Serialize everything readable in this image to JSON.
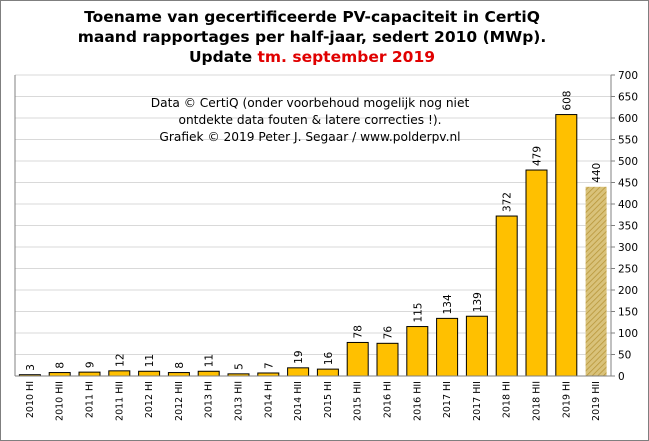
{
  "title": {
    "line1": "Toename van gecertificeerde PV-capaciteit  in CertiQ",
    "line2": "maand rapportages per half-jaar, sedert 2010 (MWp).",
    "line3_prefix": "Update ",
    "line3_highlight": "tm. september 2019"
  },
  "note": {
    "line1": "Data © CertiQ (onder voorbehoud mogelijk  nog niet",
    "line2": "ontdekte data fouten & latere correcties !).",
    "line3": "Grafiek  © 2019 Peter J. Segaar / www.polderpv.nl"
  },
  "colors": {
    "bar": "#ffc000",
    "bar_partial": "#c8a84a",
    "highlight_text": "#e00000",
    "partial_label": "#8c8c8c",
    "grid": "#d9d9d9",
    "axis": "#808080"
  },
  "chart_data": {
    "type": "bar",
    "categories": [
      "2010 HI",
      "2010 HII",
      "2011 HI",
      "2011 HII",
      "2012 HI",
      "2012 HII",
      "2013 HI",
      "2013 HII",
      "2014 HI",
      "2014 HII",
      "2015 HI",
      "2015 HII",
      "2016 HI",
      "2016 HII",
      "2017 HI",
      "2017 HII",
      "2018 HI",
      "2018 HII",
      "2019 HI",
      "2019 HII"
    ],
    "values": [
      3,
      8,
      9,
      12,
      11,
      8,
      11,
      5,
      7,
      19,
      16,
      78,
      76,
      115,
      134,
      139,
      372,
      479,
      608,
      440
    ],
    "value_labels": [
      "3",
      "8",
      "9",
      "12",
      "11",
      "8",
      "11",
      "5",
      "7",
      "19",
      "16",
      "78",
      "76",
      "115",
      "134",
      "139",
      "372",
      "479",
      "608",
      "440"
    ],
    "partial_last_bar": true,
    "y_axis_side": "right",
    "ylim": [
      0,
      700
    ],
    "yticks": [
      0,
      50,
      100,
      150,
      200,
      250,
      300,
      350,
      400,
      450,
      500,
      550,
      600,
      650,
      700
    ],
    "grid": true
  }
}
